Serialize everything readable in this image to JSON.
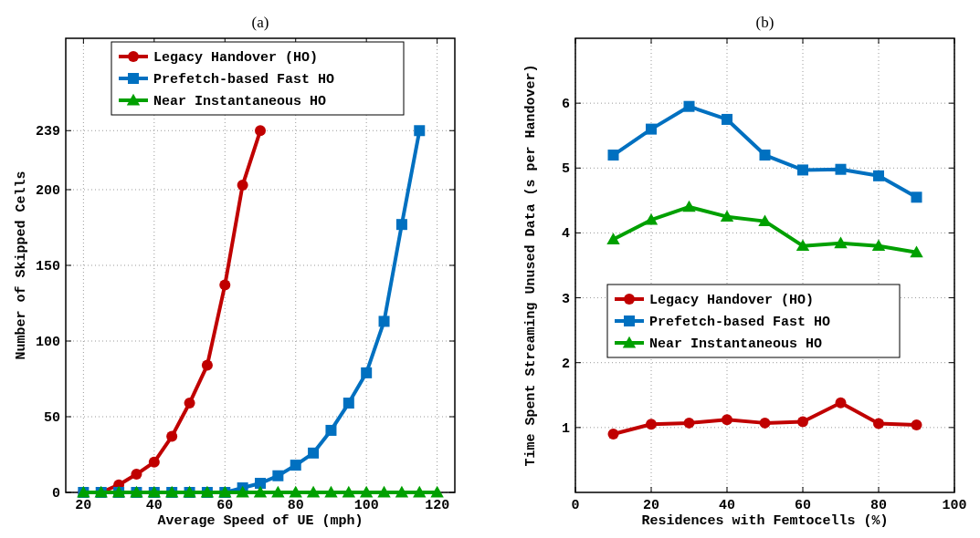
{
  "chart_data": [
    {
      "type": "line",
      "title": "(a)",
      "xlabel": "Average Speed of UE (mph)",
      "ylabel": "Number of Skipped Cells",
      "xlim": [
        15,
        125
      ],
      "xticks": [
        20,
        40,
        60,
        80,
        100,
        120
      ],
      "ylim": [
        0,
        300
      ],
      "yticks": [
        0,
        50,
        100,
        150,
        200,
        239
      ],
      "grid": true,
      "legend": "top",
      "line_style": "solid",
      "series": [
        {
          "name": "Legacy Handover (HO)",
          "color": "#c00000",
          "marker": "circle",
          "x": [
            20,
            25,
            30,
            35,
            40,
            45,
            50,
            55,
            60,
            65,
            70
          ],
          "values": [
            0,
            0,
            5,
            12,
            20,
            37,
            59,
            84,
            137,
            203,
            239
          ]
        },
        {
          "name": "Prefetch-based Fast HO",
          "color": "#0070c0",
          "marker": "square",
          "x": [
            20,
            25,
            30,
            35,
            40,
            45,
            50,
            55,
            60,
            65,
            70,
            75,
            80,
            85,
            90,
            95,
            100,
            105,
            110,
            115
          ],
          "values": [
            0,
            0,
            0,
            0,
            0,
            0,
            0,
            0,
            0,
            3,
            6,
            11,
            18,
            26,
            41,
            59,
            79,
            113,
            177,
            239
          ]
        },
        {
          "name": "Near Instantaneous HO",
          "color": "#00a000",
          "marker": "triangle",
          "x": [
            20,
            25,
            30,
            35,
            40,
            45,
            50,
            55,
            60,
            65,
            70,
            75,
            80,
            85,
            90,
            95,
            100,
            105,
            110,
            115,
            120
          ],
          "values": [
            0,
            0,
            0,
            0,
            0,
            0,
            0,
            0,
            0,
            0,
            0,
            0,
            0,
            0,
            0,
            0,
            0,
            0,
            0,
            0,
            0
          ]
        }
      ]
    },
    {
      "type": "line",
      "title": "(b)",
      "xlabel": "Residences with Femtocells (%)",
      "ylabel": "Time Spent Streaming Unused Data (s per Handover)",
      "xlim": [
        0,
        100
      ],
      "xticks": [
        0,
        20,
        40,
        60,
        80,
        100
      ],
      "ylim": [
        0,
        7
      ],
      "yticks": [
        1,
        2,
        3,
        4,
        5,
        6
      ],
      "grid": true,
      "legend": "left",
      "line_style": "solid",
      "series": [
        {
          "name": "Legacy Handover (HO)",
          "color": "#c00000",
          "marker": "circle",
          "x": [
            10,
            20,
            30,
            40,
            50,
            60,
            70,
            80,
            90
          ],
          "values": [
            0.9,
            1.05,
            1.07,
            1.12,
            1.07,
            1.09,
            1.38,
            1.06,
            1.04
          ]
        },
        {
          "name": "Prefetch-based Fast HO",
          "color": "#0070c0",
          "marker": "square",
          "x": [
            10,
            20,
            30,
            40,
            50,
            60,
            70,
            80,
            90
          ],
          "values": [
            5.2,
            5.6,
            5.95,
            5.75,
            5.2,
            4.97,
            4.98,
            4.88,
            4.55
          ]
        },
        {
          "name": "Near Instantaneous HO",
          "color": "#00a000",
          "marker": "triangle",
          "x": [
            10,
            20,
            30,
            40,
            50,
            60,
            70,
            80,
            90
          ],
          "values": [
            3.9,
            4.2,
            4.4,
            4.25,
            4.18,
            3.8,
            3.84,
            3.8,
            3.7
          ]
        }
      ]
    }
  ]
}
